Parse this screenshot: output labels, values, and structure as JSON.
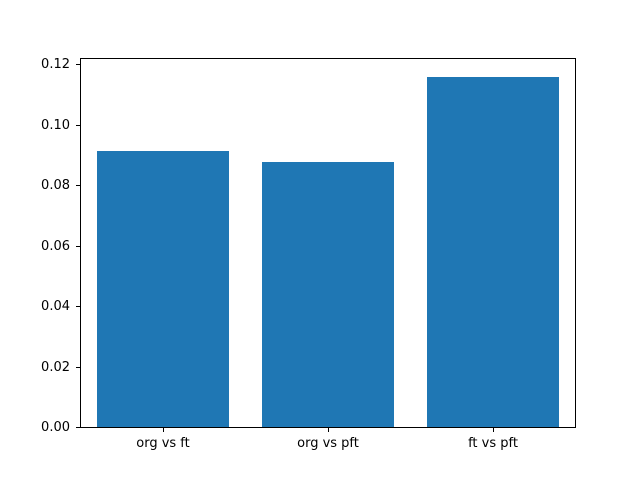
{
  "chart_data": {
    "type": "bar",
    "categories": [
      "org vs ft",
      "org vs pft",
      "ft vs pft"
    ],
    "values": [
      0.0915,
      0.0878,
      0.116
    ],
    "title": "",
    "xlabel": "",
    "ylabel": "",
    "ylim": [
      0,
      0.1218
    ],
    "yticks": [
      0.0,
      0.02,
      0.04,
      0.06,
      0.08,
      0.1,
      0.12
    ],
    "ytick_labels": [
      "0.00",
      "0.02",
      "0.04",
      "0.06",
      "0.08",
      "0.10",
      "0.12"
    ],
    "bar_color": "#1f77b4",
    "frame_color": "#000000",
    "background_color": "#ffffff",
    "grid": false,
    "legend": null
  }
}
